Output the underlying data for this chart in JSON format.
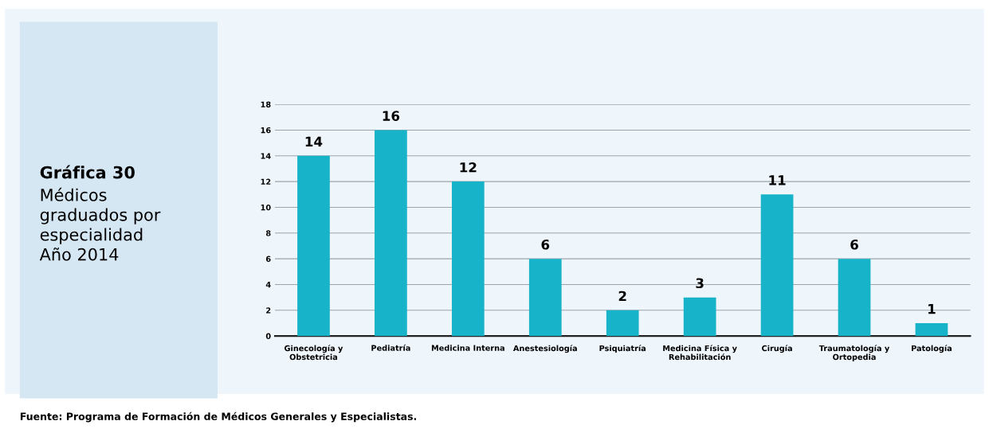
{
  "chart_data": {
    "type": "bar",
    "title": "Gráfica 30",
    "subtitle": "Médicos\ngraduados por\nespecialidad\nAño 2014",
    "categories": [
      "Ginecología y\nObstetricia",
      "Pediatría",
      "Medicina Interna",
      "Anestesiología",
      "Psiquiatría",
      "Medicina Física y\nRehabilitación",
      "Cirugía",
      "Traumatología y\nOrtopedia",
      "Patología"
    ],
    "values": [
      14,
      16,
      12,
      6,
      2,
      3,
      11,
      6,
      1
    ],
    "color": "#17b4c9",
    "ylim": [
      0,
      18
    ],
    "yticks": [
      0,
      2,
      4,
      6,
      8,
      10,
      12,
      14,
      16,
      18
    ],
    "grid": "y",
    "data_labels": true,
    "annotations": [
      "Fuente: Programa de Formación de Médicos Generales y Especialistas."
    ]
  }
}
